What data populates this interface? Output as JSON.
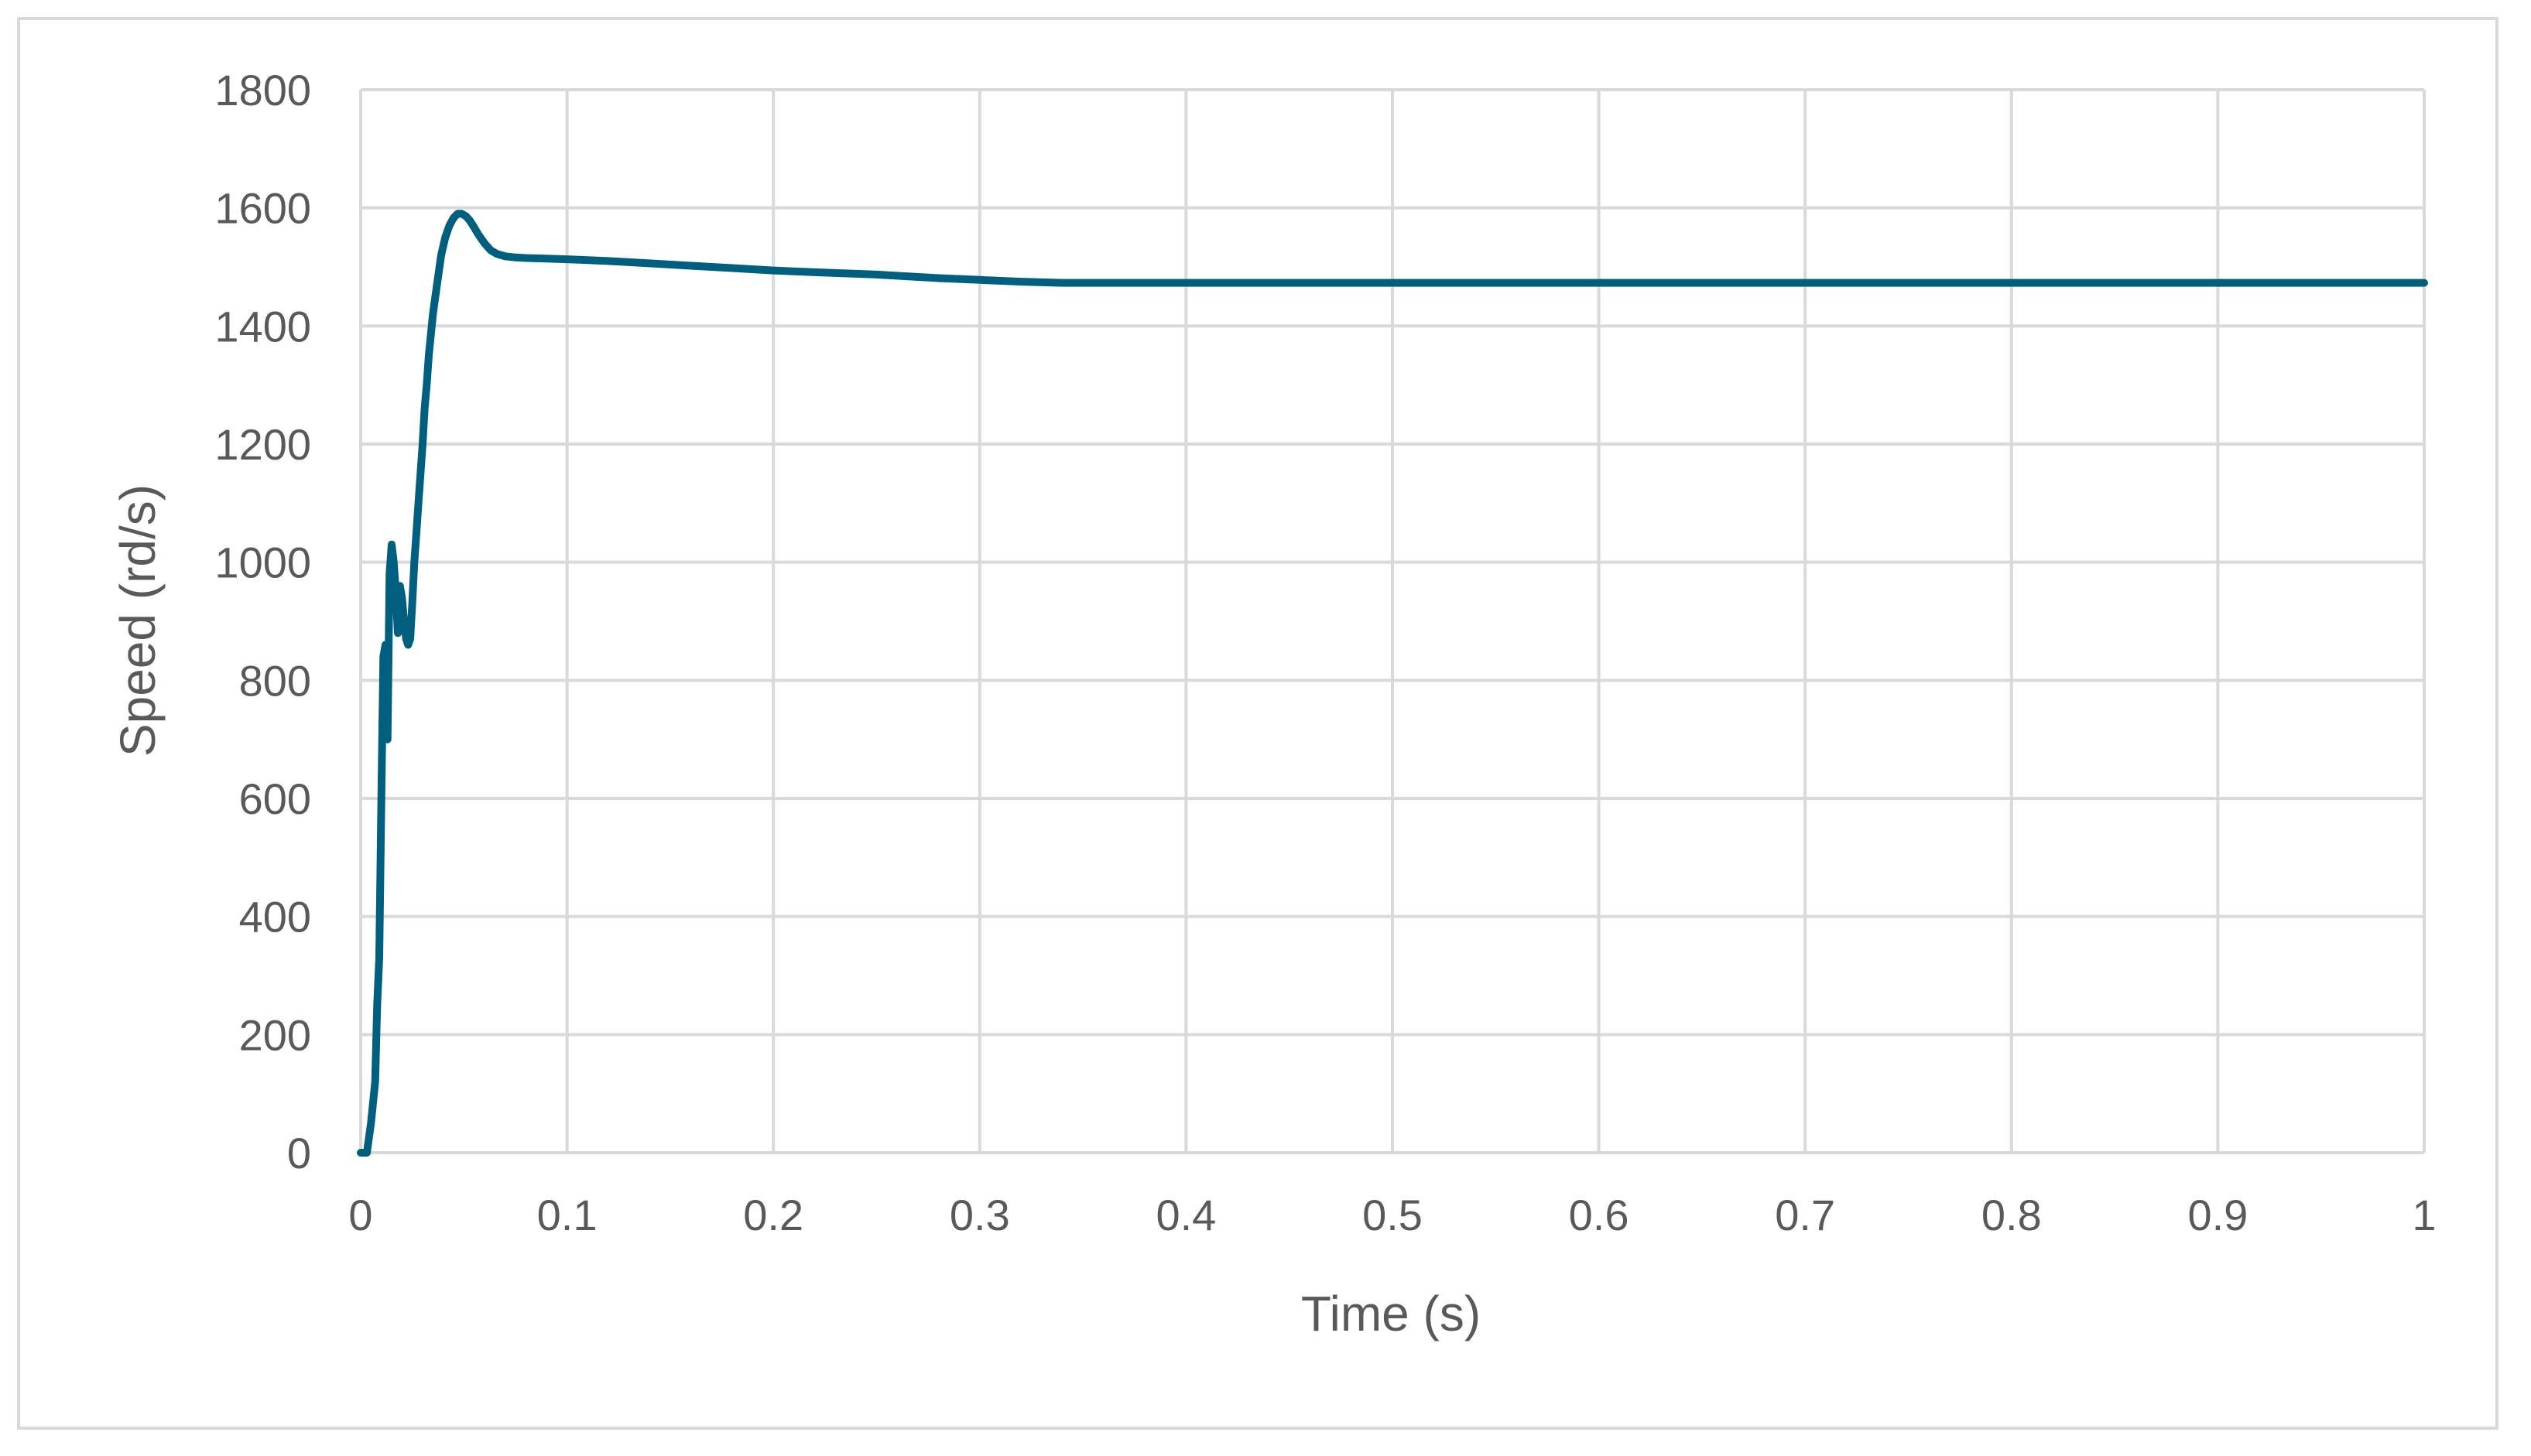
{
  "chart_data": {
    "type": "line",
    "xlabel": "Time (s)",
    "ylabel": "Speed (rd/s)",
    "xlim": [
      0,
      1
    ],
    "ylim": [
      0,
      1800
    ],
    "x_ticks": [
      "0",
      "0.1",
      "0.2",
      "0.3",
      "0.4",
      "0.5",
      "0.6",
      "0.7",
      "0.8",
      "0.9",
      "1"
    ],
    "y_ticks": [
      "0",
      "200",
      "400",
      "600",
      "800",
      "1000",
      "1200",
      "1400",
      "1600",
      "1800"
    ],
    "grid": true,
    "legend": "none",
    "series": [
      {
        "color": "#005f7f",
        "x": [
          0,
          0.003,
          0.005,
          0.007,
          0.008,
          0.009,
          0.01,
          0.011,
          0.012,
          0.013,
          0.014,
          0.015,
          0.016,
          0.017,
          0.018,
          0.019,
          0.02,
          0.021,
          0.022,
          0.023,
          0.024,
          0.025,
          0.026,
          0.027,
          0.028,
          0.029,
          0.03,
          0.031,
          0.032,
          0.033,
          0.035,
          0.037,
          0.039,
          0.041,
          0.043,
          0.045,
          0.047,
          0.049,
          0.051,
          0.053,
          0.055,
          0.057,
          0.06,
          0.063,
          0.066,
          0.07,
          0.075,
          0.08,
          0.09,
          0.1,
          0.12,
          0.14,
          0.16,
          0.18,
          0.2,
          0.22,
          0.25,
          0.28,
          0.3,
          0.32,
          0.34,
          0.4,
          0.5,
          0.6,
          0.7,
          0.8,
          0.9,
          1.0
        ],
        "y": [
          0,
          0,
          50,
          120,
          250,
          330,
          600,
          840,
          860,
          700,
          980,
          1030,
          1000,
          950,
          880,
          960,
          940,
          900,
          870,
          860,
          870,
          930,
          1000,
          1050,
          1100,
          1150,
          1200,
          1260,
          1300,
          1350,
          1420,
          1470,
          1520,
          1550,
          1570,
          1583,
          1590,
          1590,
          1586,
          1578,
          1567,
          1555,
          1540,
          1528,
          1522,
          1518,
          1516,
          1515,
          1514,
          1513,
          1510,
          1506,
          1502,
          1498,
          1494,
          1491,
          1487,
          1481,
          1478,
          1475,
          1473,
          1473,
          1473,
          1473,
          1473,
          1473,
          1473,
          1473
        ]
      }
    ]
  }
}
